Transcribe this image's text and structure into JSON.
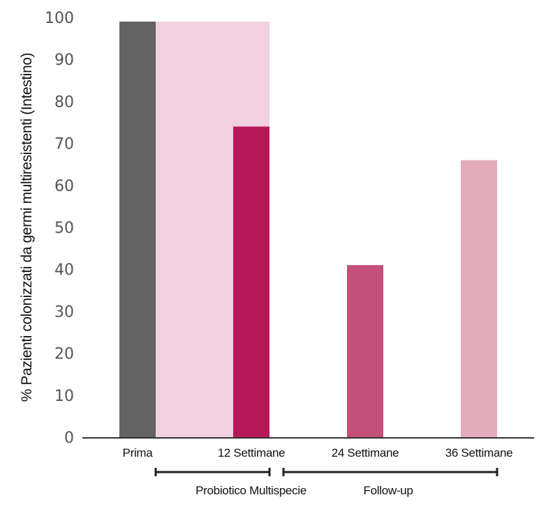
{
  "chart_data": {
    "type": "bar",
    "ylabel": "% Pazienti colonizzati da germi multiresistenti (Intestino)",
    "ylim": [
      0,
      100
    ],
    "yticks": [
      0,
      10,
      20,
      30,
      40,
      50,
      60,
      70,
      80,
      90,
      100
    ],
    "categories": [
      "Prima",
      "12 Settimane",
      "24 Settimane",
      "36 Settimane"
    ],
    "values": [
      99,
      74,
      41,
      66
    ],
    "bar_colors": [
      "#636363",
      "#b5195a",
      "#c4507a",
      "#e3abbb"
    ],
    "shaded_period": {
      "from_category": "Prima",
      "to_category": "12 Settimane",
      "value": 99,
      "color": "#f2d0df"
    },
    "groups": [
      {
        "label": "Probiotico Multispecie",
        "from_category": "Prima",
        "to_category": "12 Settimane"
      },
      {
        "label": "Follow-up",
        "from_category": "12 Settimane",
        "to_category": "36 Settimane"
      }
    ],
    "grid": false,
    "legend": "none"
  }
}
